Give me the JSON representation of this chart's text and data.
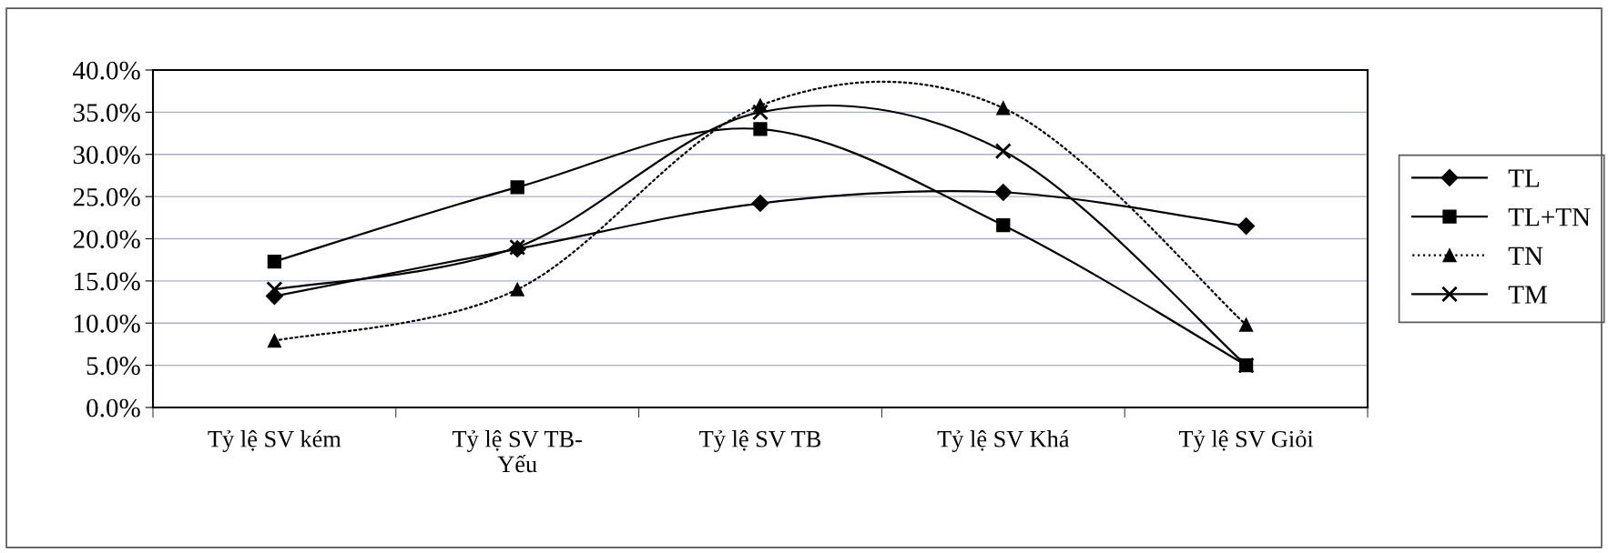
{
  "chart_data": {
    "type": "line",
    "categories": [
      "Tỷ lệ SV kém",
      "Tỷ lệ SV TB-Yếu",
      "Tỷ lệ SV TB",
      "Tỷ lệ SV Khá",
      "Tỷ lệ SV Giỏi"
    ],
    "series": [
      {
        "name": "TL",
        "color": "#000000",
        "marker": "diamond",
        "line_style": "solid",
        "values": [
          13.2,
          18.8,
          24.2,
          25.5,
          21.5
        ]
      },
      {
        "name": "TL+TN",
        "color": "#000000",
        "marker": "square",
        "line_style": "solid",
        "values": [
          17.3,
          26.1,
          33.0,
          21.6,
          5.0
        ]
      },
      {
        "name": "TN",
        "color": "#000000",
        "marker": "triangle",
        "line_style": "dotted",
        "values": [
          7.9,
          14.0,
          35.8,
          35.5,
          9.8
        ]
      },
      {
        "name": "TM",
        "color": "#000000",
        "marker": "cross",
        "line_style": "solid",
        "values": [
          14.0,
          19.0,
          35.0,
          30.4,
          5.0
        ]
      }
    ],
    "ylim": [
      0,
      40
    ],
    "yticks": [
      {
        "value": 0,
        "label": "0.0%"
      },
      {
        "value": 5,
        "label": "5.0%"
      },
      {
        "value": 10,
        "label": "10.0%"
      },
      {
        "value": 15,
        "label": "15.0%"
      },
      {
        "value": 20,
        "label": "20.0%"
      },
      {
        "value": 25,
        "label": "25.0%"
      },
      {
        "value": 30,
        "label": "30.0%"
      },
      {
        "value": 35,
        "label": "35.0%"
      },
      {
        "value": 40,
        "label": "40.0%"
      }
    ],
    "grid": "y",
    "legend": "right"
  }
}
